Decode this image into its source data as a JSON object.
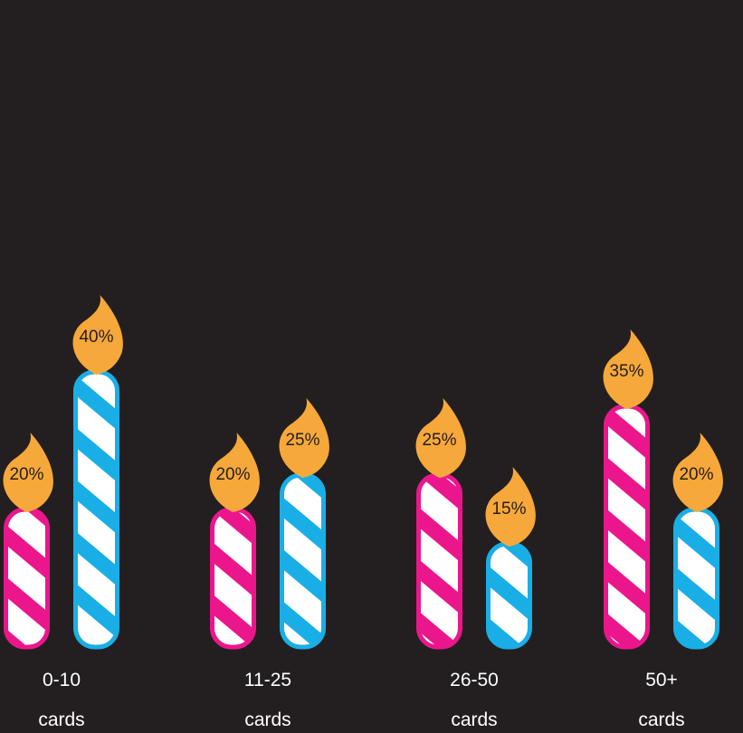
{
  "chart_data": {
    "type": "bar",
    "categories": [
      {
        "line1": "0-10",
        "line2": "cards"
      },
      {
        "line1": "11-25",
        "line2": "cards"
      },
      {
        "line1": "26-50",
        "line2": "cards"
      },
      {
        "line1": "50+",
        "line2": "cards"
      }
    ],
    "series": [
      {
        "values": [
          20,
          20,
          25,
          35
        ],
        "labels": [
          "20%",
          "20%",
          "25%",
          "35%"
        ],
        "color": "#ec168c"
      },
      {
        "values": [
          40,
          25,
          15,
          20
        ],
        "labels": [
          "40%",
          "25%",
          "15%",
          "20%"
        ],
        "color": "#1aaee6"
      }
    ],
    "ylim": [
      0,
      40
    ],
    "value_unit": "%",
    "grid": false,
    "legend": "none",
    "colors": {
      "background": "#231f20",
      "flame": "#f7a83a",
      "stripe_base": "#ffffff",
      "category_text": "#ffffff"
    }
  }
}
